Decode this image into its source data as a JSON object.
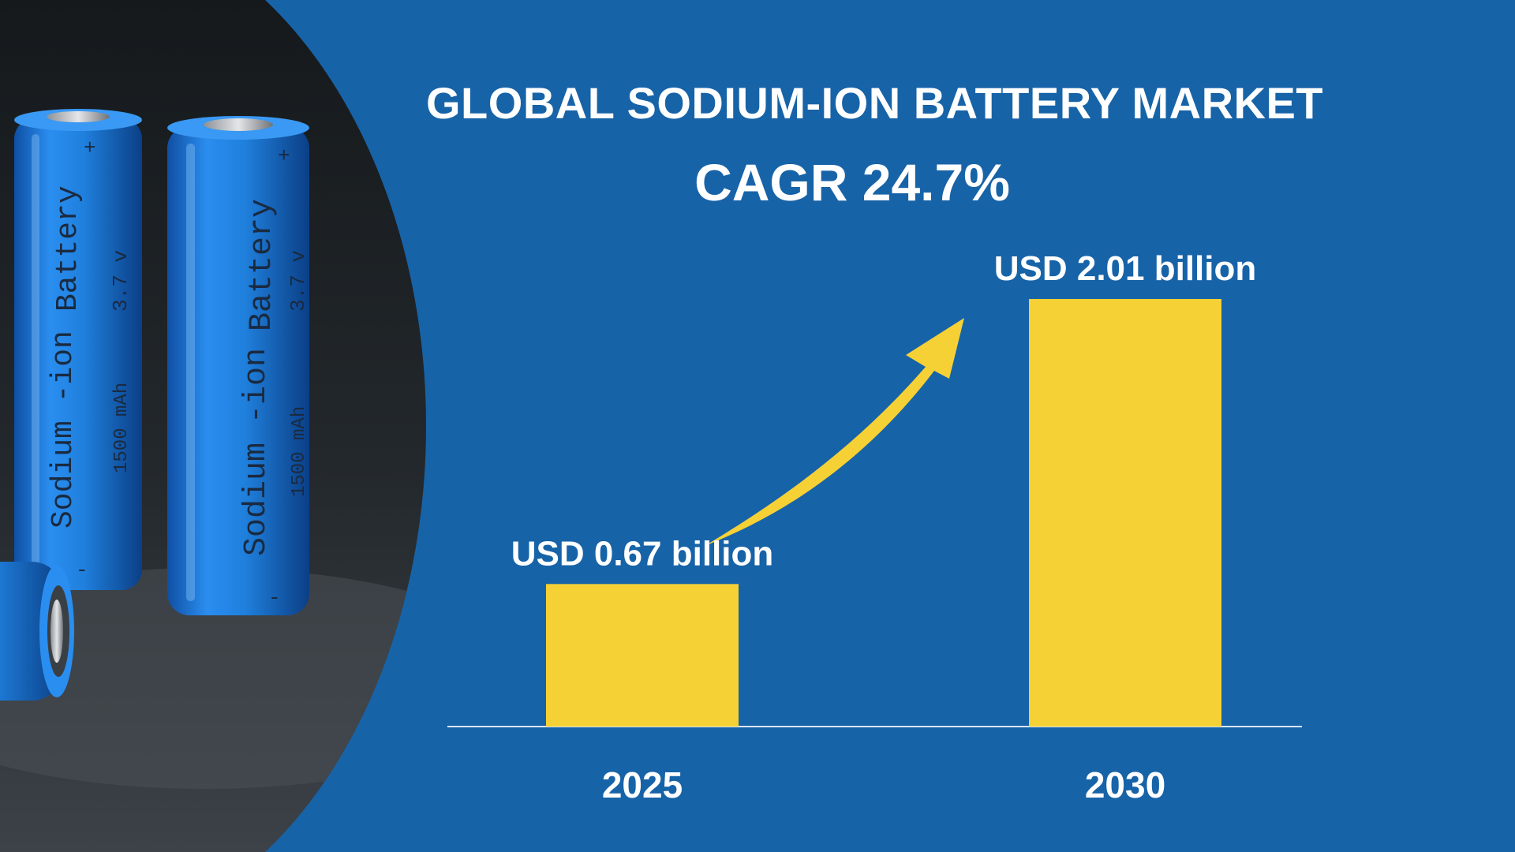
{
  "colors": {
    "background": "#1763a8",
    "bar": "#f6d135",
    "arrow": "#f6d135",
    "text": "#ffffff",
    "baseline": "#d8e4f2",
    "battery_body": "#1f7fdc",
    "photo_background": "#1e2226"
  },
  "header": {
    "title": "GLOBAL SODIUM-ION BATTERY MARKET",
    "subtitle": "CAGR 24.7%"
  },
  "photo": {
    "battery_texts": [
      "Sodium -ion",
      "Battery",
      "3.7 v",
      "1500 mAh",
      "+",
      "-"
    ]
  },
  "chart_data": {
    "type": "bar",
    "title": "GLOBAL SODIUM-ION BATTERY MARKET",
    "subtitle": "CAGR 24.7%",
    "categories": [
      "2025",
      "2030"
    ],
    "values": [
      0.67,
      2.01
    ],
    "data_labels": [
      "USD 0.67 billion",
      "USD 2.01 billion"
    ],
    "unit": "USD billion",
    "ylim": [
      0,
      2.01
    ],
    "grid": false,
    "legend": "none",
    "annotation": "upward growth arrow from 2025 to 2030"
  }
}
